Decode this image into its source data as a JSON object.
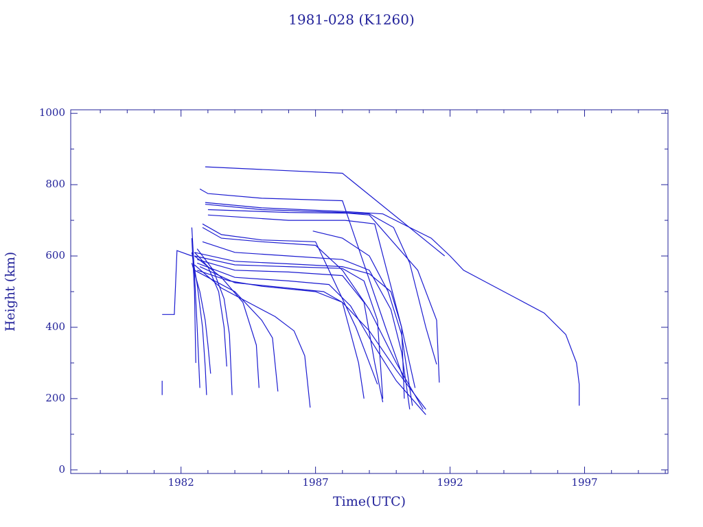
{
  "chart_data": {
    "type": "line",
    "title": "1981-028 (K1260)",
    "x_label": "Time(UTC)",
    "y_label": "Height (km)",
    "color": "#1a1ad0",
    "axis_color": "#22229a",
    "xlim": [
      1977.9,
      2000.1
    ],
    "ylim": [
      -10,
      1010
    ],
    "xticks": [
      1982,
      1987,
      1992,
      1997
    ],
    "xminorticks": [
      1979,
      1980,
      1981,
      1983,
      1984,
      1985,
      1986,
      1988,
      1989,
      1990,
      1991,
      1993,
      1994,
      1995,
      1996,
      1998,
      1999,
      2000
    ],
    "yticks": [
      0,
      200,
      400,
      600,
      800,
      1000
    ],
    "yminorticks": [
      100,
      300,
      500,
      700,
      900
    ],
    "series": [
      {
        "x": [
          1981.3,
          1981.75,
          1981.85,
          1982.4
        ],
        "values": [
          436,
          436,
          615,
          600
        ]
      },
      {
        "x": [
          1981.3,
          1981.3
        ],
        "values": [
          250,
          210
        ]
      },
      {
        "x": [
          1982.9,
          1988,
          1991.8
        ],
        "values": [
          850,
          832,
          600
        ]
      },
      {
        "x": [
          1982.7,
          1983,
          1985,
          1988,
          1989.6,
          1990.3
        ],
        "values": [
          788,
          775,
          762,
          755,
          400,
          250
        ]
      },
      {
        "x": [
          1982.9,
          1985,
          1988,
          1989.5,
          1990.5,
          1991.3,
          1992,
          1992.5,
          1993.5,
          1994.5,
          1995.5,
          1996.3,
          1996.7,
          1996.8,
          1996.8
        ],
        "values": [
          750,
          735,
          725,
          718,
          680,
          650,
          600,
          560,
          520,
          480,
          440,
          380,
          300,
          240,
          180
        ]
      },
      {
        "x": [
          1982.9,
          1985,
          1988,
          1989,
          1989.9,
          1990.5,
          1991.1,
          1991.5
        ],
        "values": [
          745,
          730,
          722,
          718,
          680,
          580,
          400,
          296
        ]
      },
      {
        "x": [
          1983,
          1986,
          1988.2,
          1989,
          1990.8,
          1991.5,
          1991.6
        ],
        "values": [
          730,
          722,
          720,
          715,
          560,
          420,
          245
        ]
      },
      {
        "x": [
          1983,
          1986,
          1988.1,
          1989.2,
          1990.2,
          1990.7
        ],
        "values": [
          715,
          700,
          700,
          690,
          400,
          230
        ]
      },
      {
        "x": [
          1986.9,
          1988,
          1989,
          1989.7,
          1990.2,
          1990.6
        ],
        "values": [
          670,
          650,
          600,
          500,
          380,
          180
        ]
      },
      {
        "x": [
          1982.8,
          1983.5,
          1985,
          1987,
          1988.5,
          1989.3
        ],
        "values": [
          690,
          660,
          645,
          640,
          400,
          240
        ]
      },
      {
        "x": [
          1982.8,
          1983.5,
          1985,
          1987,
          1988,
          1989,
          1990,
          1991
        ],
        "values": [
          680,
          650,
          640,
          630,
          560,
          450,
          300,
          170
        ]
      },
      {
        "x": [
          1982.8,
          1984,
          1986,
          1988,
          1989,
          1989.8,
          1990.2,
          1990.5
        ],
        "values": [
          640,
          610,
          600,
          590,
          560,
          450,
          330,
          170
        ]
      },
      {
        "x": [
          1982.5,
          1984,
          1986,
          1988,
          1989,
          1989.8,
          1990.2,
          1990.3
        ],
        "values": [
          610,
          585,
          578,
          570,
          550,
          500,
          400,
          200
        ]
      },
      {
        "x": [
          1982.5,
          1984,
          1986,
          1988,
          1988.8,
          1989.3,
          1989.5
        ],
        "values": [
          600,
          575,
          570,
          565,
          530,
          420,
          200
        ]
      },
      {
        "x": [
          1982.6,
          1984,
          1986,
          1988,
          1988.8,
          1989.2,
          1989.5
        ],
        "values": [
          590,
          560,
          555,
          545,
          470,
          300,
          190
        ]
      },
      {
        "x": [
          1982.6,
          1984,
          1986,
          1987.5,
          1988.3,
          1989,
          1990,
          1991.1
        ],
        "values": [
          580,
          540,
          530,
          520,
          460,
          370,
          250,
          155
        ]
      },
      {
        "x": [
          1982.7,
          1984,
          1986,
          1987.3,
          1988,
          1988.6,
          1988.8
        ],
        "values": [
          570,
          525,
          510,
          500,
          470,
          300,
          200
        ]
      },
      {
        "x": [
          1982.6,
          1983.8,
          1985,
          1987,
          1988,
          1989,
          1990,
          1991.1
        ],
        "values": [
          560,
          530,
          515,
          500,
          470,
          390,
          280,
          170
        ]
      },
      {
        "x": [
          1982.5,
          1983.5,
          1984.5,
          1985.5,
          1986.2,
          1986.6,
          1986.8
        ],
        "values": [
          575,
          510,
          470,
          430,
          390,
          320,
          175
        ]
      },
      {
        "x": [
          1982.5,
          1984,
          1985,
          1985.4,
          1985.6
        ],
        "values": [
          560,
          500,
          420,
          370,
          220
        ]
      },
      {
        "x": [
          1982.5,
          1983.5,
          1984.3,
          1984.8,
          1984.9
        ],
        "values": [
          600,
          540,
          470,
          350,
          230
        ]
      },
      {
        "x": [
          1982.4,
          1982.5,
          1982.6,
          1982.7
        ],
        "values": [
          680,
          550,
          400,
          230
        ]
      },
      {
        "x": [
          1982.4,
          1982.6,
          1982.8,
          1982.9,
          1982.95
        ],
        "values": [
          610,
          520,
          400,
          290,
          210
        ]
      },
      {
        "x": [
          1982.4,
          1982.7,
          1982.9,
          1983,
          1983.1
        ],
        "values": [
          580,
          500,
          420,
          350,
          270
        ]
      },
      {
        "x": [
          1982.5,
          1983,
          1983.4,
          1983.6,
          1983.7
        ],
        "values": [
          610,
          570,
          500,
          400,
          290
        ]
      },
      {
        "x": [
          1982.6,
          1983.2,
          1983.6,
          1983.8,
          1983.9
        ],
        "values": [
          620,
          560,
          480,
          380,
          210
        ]
      },
      {
        "x": [
          1982.4,
          1982.5,
          1982.55
        ],
        "values": [
          650,
          500,
          300
        ]
      }
    ]
  }
}
